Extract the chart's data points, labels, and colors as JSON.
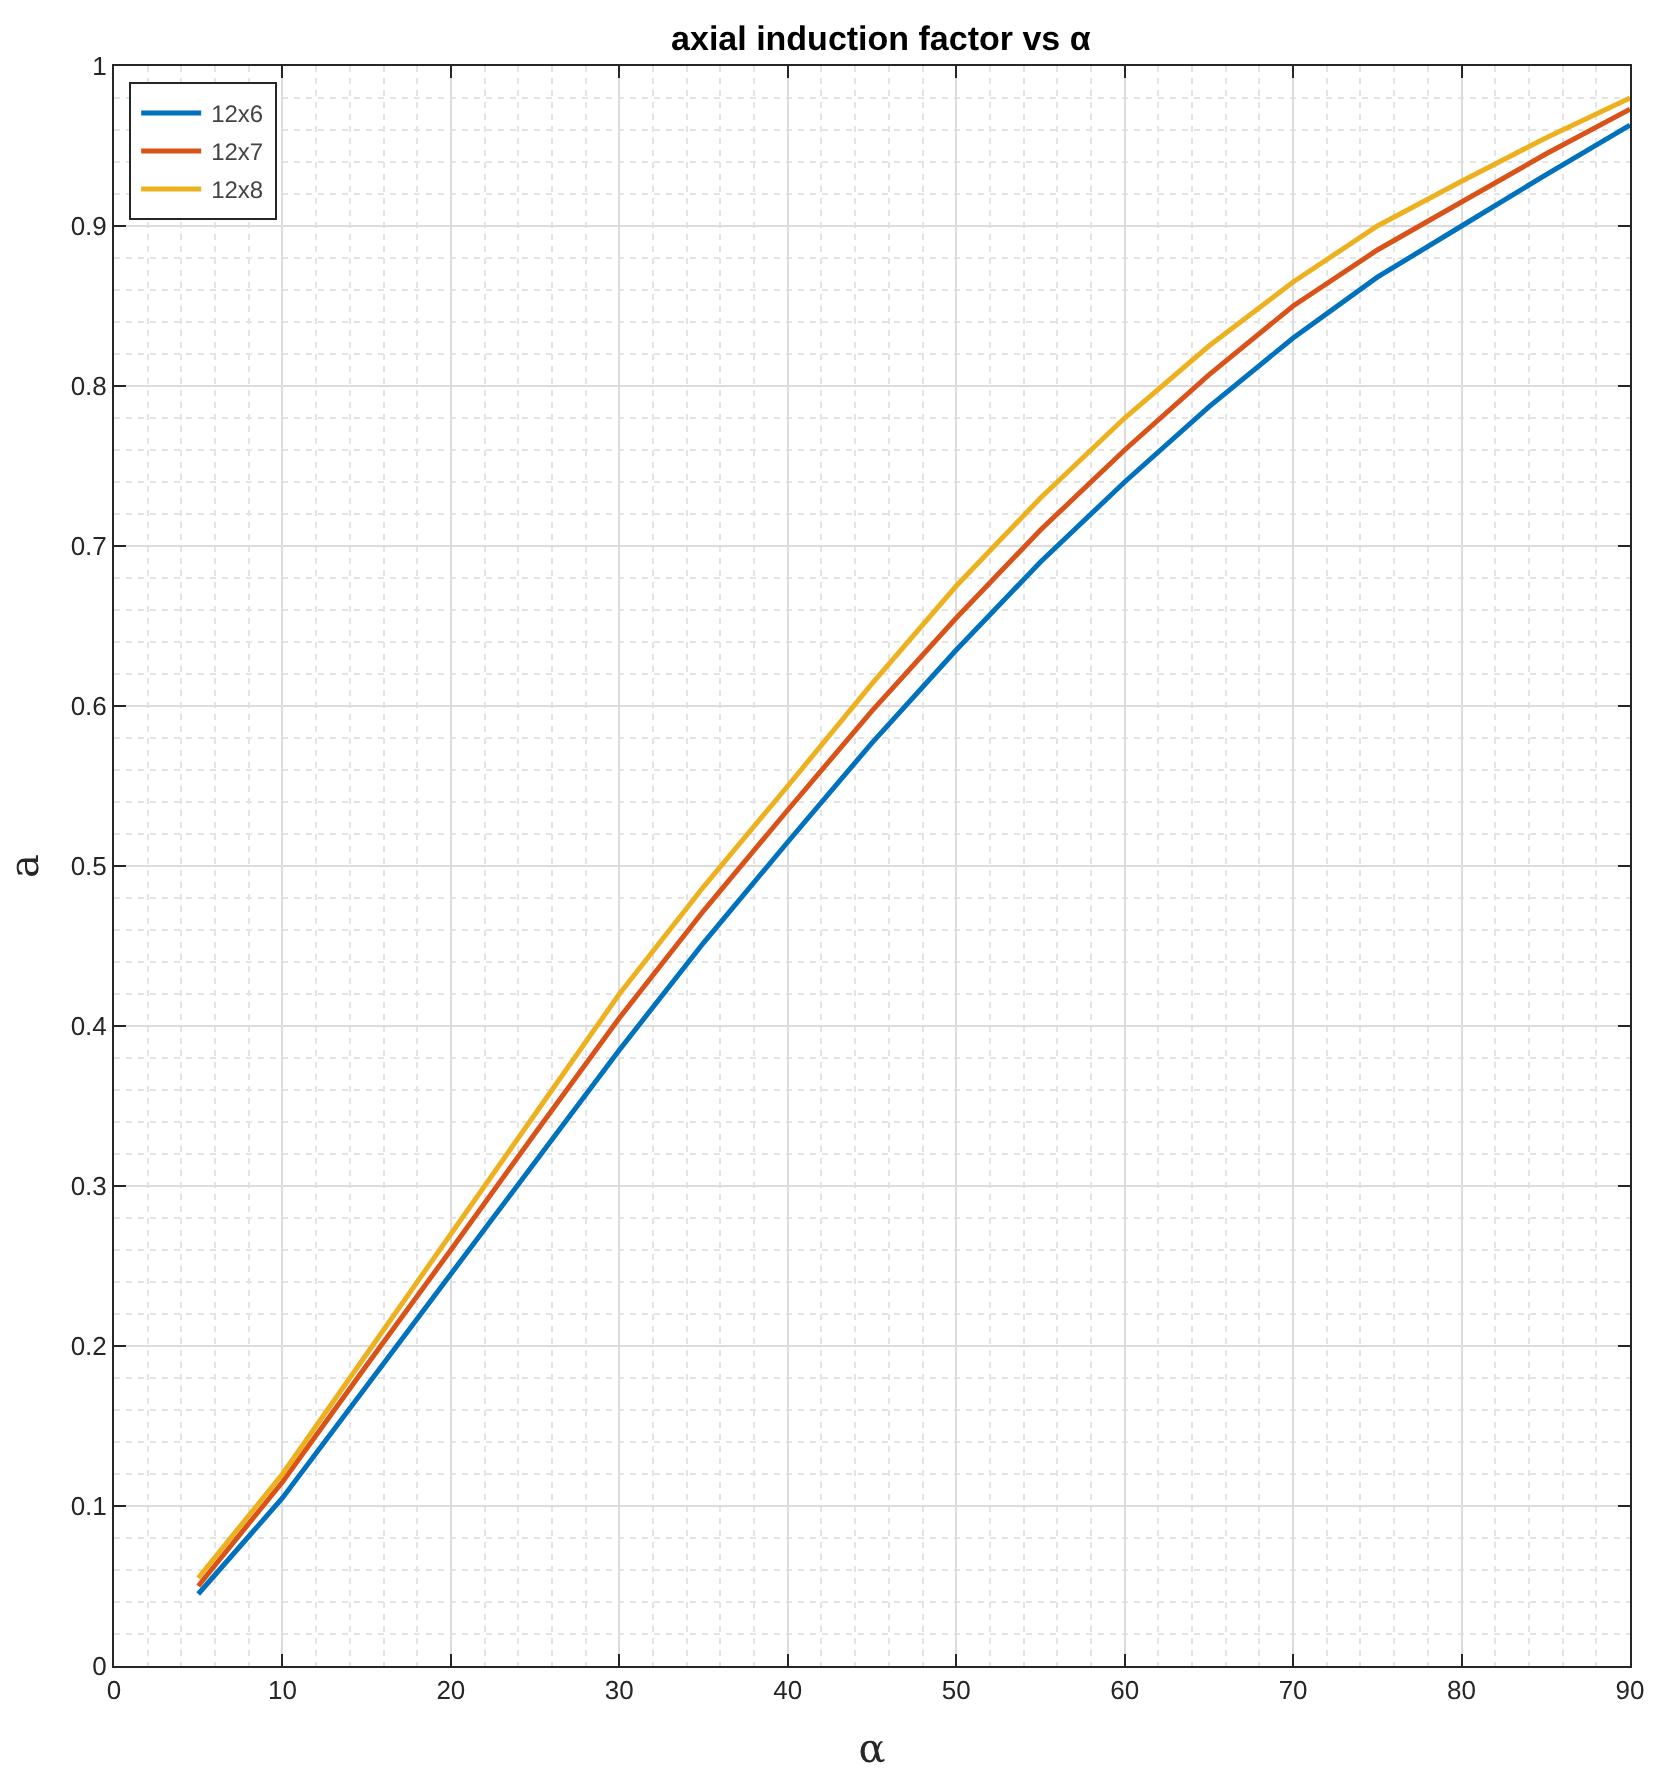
{
  "chart_data": {
    "type": "line",
    "title": "axial induction factor vs α",
    "xlabel": "α",
    "ylabel": "a",
    "x": [
      5,
      10,
      15,
      20,
      25,
      30,
      35,
      40,
      45,
      50,
      55,
      60,
      65,
      70,
      75,
      80,
      85,
      90
    ],
    "series": [
      {
        "name": "12x6",
        "color": "#0072bd",
        "values": [
          0.045,
          0.105,
          0.175,
          0.245,
          0.315,
          0.385,
          0.452,
          0.515,
          0.577,
          0.635,
          0.69,
          0.74,
          0.787,
          0.83,
          0.868,
          0.9,
          0.932,
          0.963
        ]
      },
      {
        "name": "12x7",
        "color": "#d95319",
        "values": [
          0.05,
          0.115,
          0.188,
          0.26,
          0.333,
          0.405,
          0.472,
          0.535,
          0.597,
          0.655,
          0.71,
          0.76,
          0.807,
          0.85,
          0.885,
          0.915,
          0.945,
          0.973
        ]
      },
      {
        "name": "12x8",
        "color": "#edb120",
        "values": [
          0.055,
          0.12,
          0.195,
          0.27,
          0.345,
          0.42,
          0.487,
          0.55,
          0.614,
          0.675,
          0.73,
          0.78,
          0.825,
          0.865,
          0.9,
          0.928,
          0.955,
          0.98
        ]
      }
    ],
    "xlim": [
      0,
      90
    ],
    "xticks": [
      0,
      10,
      20,
      30,
      40,
      50,
      60,
      70,
      80,
      90
    ],
    "ylim": [
      0,
      1
    ],
    "yticks": [
      0,
      0.1,
      0.2,
      0.3,
      0.4,
      0.5,
      0.6,
      0.7,
      0.8,
      0.9,
      1
    ],
    "grid": true,
    "legend": "top left",
    "marker": "none",
    "line_style": "solid"
  }
}
